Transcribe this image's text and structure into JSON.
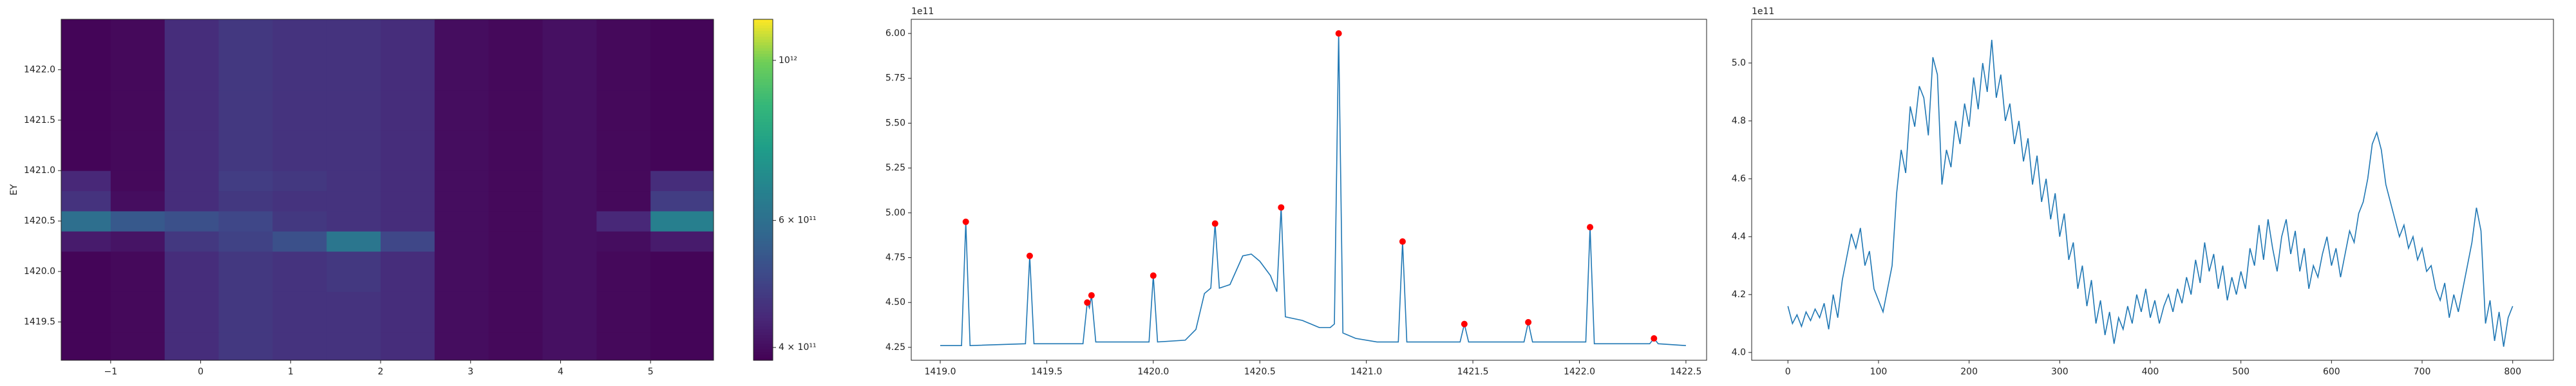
{
  "chart_data": [
    {
      "type": "heatmap",
      "ylabel": "EY",
      "cmap": "viridis",
      "color_scale": "log",
      "xedges": [
        -1.55,
        -1.0,
        -0.4,
        0.2,
        0.8,
        1.4,
        2.0,
        2.6,
        3.2,
        3.8,
        4.4,
        5.0,
        5.7
      ],
      "yedges": [
        1419.12,
        1419.4,
        1419.8,
        1420.2,
        1420.4,
        1420.6,
        1420.8,
        1421.0,
        1421.4,
        1421.8,
        1422.5
      ],
      "z": [
        [
          390000000000.0,
          395000000000.0,
          450000000000.0,
          470000000000.0,
          460000000000.0,
          460000000000.0,
          450000000000.0,
          400000000000.0,
          395000000000.0,
          405000000000.0,
          395000000000.0,
          390000000000.0
        ],
        [
          390000000000.0,
          395000000000.0,
          450000000000.0,
          470000000000.0,
          460000000000.0,
          460000000000.0,
          450000000000.0,
          400000000000.0,
          395000000000.0,
          405000000000.0,
          395000000000.0,
          390000000000.0
        ],
        [
          390000000000.0,
          395000000000.0,
          450000000000.0,
          470000000000.0,
          460000000000.0,
          470000000000.0,
          450000000000.0,
          400000000000.0,
          395000000000.0,
          405000000000.0,
          395000000000.0,
          390000000000.0
        ],
        [
          420000000000.0,
          410000000000.0,
          470000000000.0,
          490000000000.0,
          520000000000.0,
          620000000000.0,
          500000000000.0,
          400000000000.0,
          395000000000.0,
          405000000000.0,
          400000000000.0,
          420000000000.0
        ],
        [
          600000000000.0,
          540000000000.0,
          520000000000.0,
          500000000000.0,
          470000000000.0,
          460000000000.0,
          450000000000.0,
          400000000000.0,
          395000000000.0,
          405000000000.0,
          440000000000.0,
          650000000000.0
        ],
        [
          460000000000.0,
          400000000000.0,
          450000000000.0,
          470000000000.0,
          460000000000.0,
          460000000000.0,
          450000000000.0,
          400000000000.0,
          395000000000.0,
          405000000000.0,
          395000000000.0,
          480000000000.0
        ],
        [
          440000000000.0,
          395000000000.0,
          450000000000.0,
          480000000000.0,
          470000000000.0,
          460000000000.0,
          450000000000.0,
          400000000000.0,
          395000000000.0,
          405000000000.0,
          395000000000.0,
          450000000000.0
        ],
        [
          390000000000.0,
          395000000000.0,
          450000000000.0,
          470000000000.0,
          460000000000.0,
          460000000000.0,
          450000000000.0,
          400000000000.0,
          395000000000.0,
          405000000000.0,
          395000000000.0,
          390000000000.0
        ],
        [
          390000000000.0,
          395000000000.0,
          450000000000.0,
          470000000000.0,
          460000000000.0,
          460000000000.0,
          450000000000.0,
          400000000000.0,
          395000000000.0,
          405000000000.0,
          395000000000.0,
          390000000000.0
        ],
        [
          390000000000.0,
          395000000000.0,
          450000000000.0,
          470000000000.0,
          460000000000.0,
          460000000000.0,
          450000000000.0,
          400000000000.0,
          395000000000.0,
          405000000000.0,
          395000000000.0,
          390000000000.0
        ]
      ],
      "clim": [
        384000000000.0,
        1140000000000.0
      ],
      "cticks": [
        {
          "value": 400000000000.0,
          "label": "4 × 10¹¹"
        },
        {
          "value": 600000000000.0,
          "label": "6 × 10¹¹"
        },
        {
          "value": 1000000000000.0,
          "label": "10¹²"
        }
      ],
      "xlim": [
        -1.55,
        5.7
      ],
      "ylim": [
        1419.12,
        1422.5
      ],
      "xticks": [
        {
          "value": -1,
          "label": "−1"
        },
        0,
        1,
        2,
        3,
        4,
        5
      ],
      "yticks": [
        1419.5,
        {
          "value": 1420,
          "label": "1420.0"
        },
        1420.5,
        {
          "value": 1421,
          "label": "1421.0"
        },
        1421.5,
        {
          "value": 1422,
          "label": "1422.0"
        }
      ]
    },
    {
      "type": "line",
      "offset_text": "1e11",
      "xlim": [
        1418.864,
        1422.597
      ],
      "ylim": [
        4.178,
        6.079
      ],
      "xticks": [
        {
          "value": 1419,
          "label": "1419.0"
        },
        1419.5,
        {
          "value": 1420,
          "label": "1420.0"
        },
        1420.5,
        {
          "value": 1421,
          "label": "1421.0"
        },
        1421.5,
        {
          "value": 1422,
          "label": "1422.0"
        },
        1422.5
      ],
      "yticks": [
        4.25,
        {
          "value": 4.5,
          "label": "4.50"
        },
        4.75,
        {
          "value": 5,
          "label": "5.00"
        },
        5.25,
        {
          "value": 5.5,
          "label": "5.50"
        },
        5.75,
        {
          "value": 6,
          "label": "6.00"
        }
      ],
      "series": [
        {
          "type": "line",
          "color": "#1f77b4",
          "x": [
            1419.0,
            1419.1,
            1419.12,
            1419.14,
            1419.4,
            1419.42,
            1419.44,
            1419.67,
            1419.69,
            1419.7,
            1419.71,
            1419.73,
            1419.98,
            1420.0,
            1420.02,
            1420.15,
            1420.2,
            1420.24,
            1420.27,
            1420.29,
            1420.31,
            1420.36,
            1420.42,
            1420.46,
            1420.5,
            1420.55,
            1420.58,
            1420.6,
            1420.62,
            1420.7,
            1420.78,
            1420.83,
            1420.85,
            1420.87,
            1420.89,
            1420.95,
            1421.05,
            1421.15,
            1421.17,
            1421.19,
            1421.44,
            1421.46,
            1421.48,
            1421.74,
            1421.76,
            1421.78,
            1422.03,
            1422.05,
            1422.07,
            1422.33,
            1422.35,
            1422.37,
            1422.5
          ],
          "values": [
            4.26,
            4.26,
            4.95,
            4.26,
            4.27,
            4.76,
            4.27,
            4.27,
            4.5,
            4.47,
            4.54,
            4.28,
            4.28,
            4.65,
            4.28,
            4.29,
            4.35,
            4.55,
            4.58,
            4.94,
            4.58,
            4.6,
            4.76,
            4.77,
            4.73,
            4.65,
            4.56,
            5.03,
            4.42,
            4.4,
            4.36,
            4.36,
            4.38,
            6.0,
            4.33,
            4.3,
            4.28,
            4.28,
            4.84,
            4.28,
            4.28,
            4.38,
            4.28,
            4.28,
            4.39,
            4.28,
            4.28,
            4.92,
            4.27,
            4.27,
            4.3,
            4.27,
            4.26
          ]
        },
        {
          "type": "scatter",
          "color": "#ff0000",
          "x": [
            1419.12,
            1419.42,
            1419.69,
            1419.71,
            1420.0,
            1420.29,
            1420.6,
            1420.87,
            1421.17,
            1421.46,
            1421.76,
            1422.05,
            1422.35
          ],
          "values": [
            4.95,
            4.76,
            4.5,
            4.54,
            4.65,
            4.94,
            5.03,
            6.0,
            4.84,
            4.38,
            4.39,
            4.92,
            4.3
          ]
        }
      ]
    },
    {
      "type": "line",
      "offset_text": "1e11",
      "xlim": [
        -40,
        845
      ],
      "ylim": [
        3.973,
        5.151
      ],
      "xticks": [
        0,
        100,
        200,
        300,
        400,
        500,
        600,
        700,
        800
      ],
      "yticks": [
        {
          "value": 4,
          "label": "4.0"
        },
        4.2,
        4.4,
        4.6,
        4.8,
        {
          "value": 5,
          "label": "5.0"
        }
      ],
      "series": [
        {
          "type": "line",
          "color": "#1f77b4",
          "x": [
            0,
            5,
            10,
            15,
            20,
            25,
            30,
            35,
            40,
            45,
            50,
            55,
            60,
            65,
            70,
            75,
            80,
            85,
            90,
            95,
            100,
            105,
            110,
            115,
            120,
            125,
            130,
            135,
            140,
            145,
            150,
            155,
            160,
            165,
            170,
            175,
            180,
            185,
            190,
            195,
            200,
            205,
            210,
            215,
            220,
            225,
            230,
            235,
            240,
            245,
            250,
            255,
            260,
            265,
            270,
            275,
            280,
            285,
            290,
            295,
            300,
            305,
            310,
            315,
            320,
            325,
            330,
            335,
            340,
            345,
            350,
            355,
            360,
            365,
            370,
            375,
            380,
            385,
            390,
            395,
            400,
            405,
            410,
            415,
            420,
            425,
            430,
            435,
            440,
            445,
            450,
            455,
            460,
            465,
            470,
            475,
            480,
            485,
            490,
            495,
            500,
            505,
            510,
            515,
            520,
            525,
            530,
            535,
            540,
            545,
            550,
            555,
            560,
            565,
            570,
            575,
            580,
            585,
            590,
            595,
            600,
            605,
            610,
            615,
            620,
            625,
            630,
            635,
            640,
            645,
            650,
            655,
            660,
            665,
            670,
            675,
            680,
            685,
            690,
            695,
            700,
            705,
            710,
            715,
            720,
            725,
            730,
            735,
            740,
            745,
            750,
            755,
            760,
            765,
            770,
            775,
            780,
            785,
            790,
            795,
            800
          ],
          "values": [
            4.16,
            4.1,
            4.13,
            4.09,
            4.14,
            4.11,
            4.15,
            4.12,
            4.17,
            4.08,
            4.2,
            4.12,
            4.25,
            4.33,
            4.41,
            4.36,
            4.43,
            4.3,
            4.35,
            4.22,
            4.18,
            4.14,
            4.22,
            4.3,
            4.55,
            4.7,
            4.62,
            4.85,
            4.78,
            4.92,
            4.88,
            4.75,
            5.02,
            4.96,
            4.58,
            4.7,
            4.64,
            4.8,
            4.72,
            4.86,
            4.78,
            4.95,
            4.84,
            5.0,
            4.9,
            5.08,
            4.88,
            4.96,
            4.8,
            4.86,
            4.72,
            4.8,
            4.66,
            4.74,
            4.58,
            4.68,
            4.52,
            4.6,
            4.46,
            4.55,
            4.4,
            4.48,
            4.32,
            4.38,
            4.22,
            4.3,
            4.16,
            4.25,
            4.1,
            4.18,
            4.06,
            4.14,
            4.03,
            4.12,
            4.08,
            4.16,
            4.1,
            4.2,
            4.14,
            4.22,
            4.12,
            4.18,
            4.1,
            4.16,
            4.2,
            4.14,
            4.22,
            4.17,
            4.26,
            4.2,
            4.32,
            4.24,
            4.38,
            4.28,
            4.34,
            4.22,
            4.3,
            4.18,
            4.26,
            4.2,
            4.28,
            4.22,
            4.36,
            4.3,
            4.44,
            4.32,
            4.46,
            4.36,
            4.28,
            4.4,
            4.46,
            4.34,
            4.42,
            4.28,
            4.36,
            4.22,
            4.3,
            4.26,
            4.34,
            4.4,
            4.3,
            4.36,
            4.26,
            4.34,
            4.42,
            4.38,
            4.48,
            4.52,
            4.6,
            4.72,
            4.76,
            4.7,
            4.58,
            4.52,
            4.46,
            4.4,
            4.44,
            4.36,
            4.4,
            4.32,
            4.36,
            4.28,
            4.3,
            4.22,
            4.18,
            4.24,
            4.12,
            4.2,
            4.14,
            4.22,
            4.3,
            4.38,
            4.5,
            4.42,
            4.1,
            4.18,
            4.04,
            4.14,
            4.02,
            4.12,
            4.16
          ]
        }
      ]
    }
  ]
}
